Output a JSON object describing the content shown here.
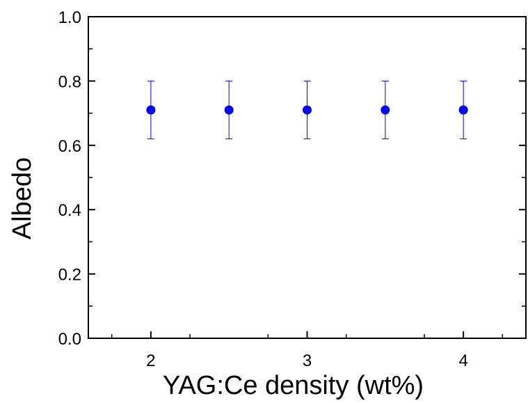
{
  "chart_data": {
    "type": "scatter",
    "title": "",
    "xlabel": "YAG:Ce density (wt%)",
    "ylabel": "Albedo",
    "xlim": [
      1.6,
      4.4
    ],
    "ylim": [
      0.0,
      1.0
    ],
    "x_ticks": [
      2,
      3,
      4
    ],
    "x_tick_labels": [
      "2",
      "3",
      "4"
    ],
    "y_ticks": [
      0.0,
      0.2,
      0.4,
      0.6,
      0.8,
      1.0
    ],
    "y_tick_labels": [
      "0.0",
      "0.2",
      "0.4",
      "0.6",
      "0.8",
      "1.0"
    ],
    "grid": false,
    "series": [
      {
        "color": "#0000ff",
        "points": [
          {
            "x": 2.0,
            "y": 0.71,
            "yerr_low": 0.62,
            "yerr_high": 0.8
          },
          {
            "x": 2.5,
            "y": 0.71,
            "yerr_low": 0.62,
            "yerr_high": 0.8
          },
          {
            "x": 3.0,
            "y": 0.71,
            "yerr_low": 0.62,
            "yerr_high": 0.8
          },
          {
            "x": 3.5,
            "y": 0.71,
            "yerr_low": 0.62,
            "yerr_high": 0.8
          },
          {
            "x": 4.0,
            "y": 0.71,
            "yerr_low": 0.62,
            "yerr_high": 0.8
          }
        ]
      }
    ]
  }
}
